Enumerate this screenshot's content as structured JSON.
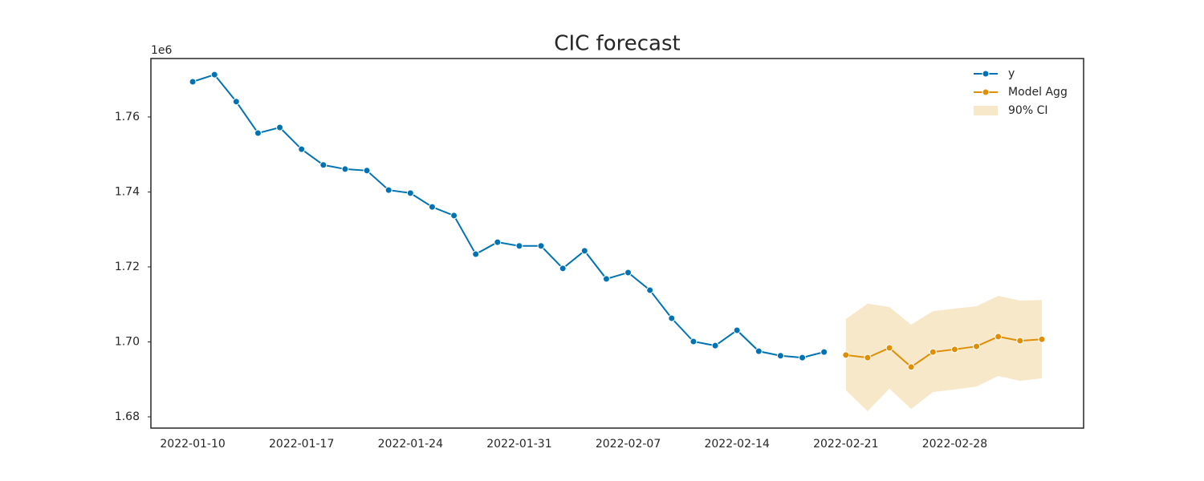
{
  "chart_data": {
    "type": "line",
    "title": "CIC forecast",
    "offset_label": "1e6",
    "categories": [
      "2022-01-10",
      null,
      null,
      null,
      null,
      "2022-01-17",
      null,
      null,
      null,
      null,
      "2022-01-24",
      null,
      null,
      null,
      null,
      "2022-01-31",
      null,
      null,
      null,
      null,
      "2022-02-07",
      null,
      null,
      null,
      null,
      "2022-02-14",
      null,
      null,
      null,
      null,
      "2022-02-21",
      null,
      null,
      null,
      null,
      "2022-02-28",
      null,
      null,
      null,
      null
    ],
    "series": [
      {
        "name": "y",
        "color": "#0173b2",
        "values": [
          1.7694,
          1.7713,
          1.7641,
          1.7557,
          1.7572,
          1.7514,
          1.7472,
          1.7461,
          1.7457,
          1.7405,
          1.7397,
          1.736,
          1.7337,
          1.7234,
          1.7266,
          1.7256,
          1.7256,
          1.7196,
          1.7243,
          1.7168,
          1.7185,
          1.7138,
          1.7063,
          1.7001,
          1.699,
          1.7031,
          1.6975,
          1.6963,
          1.6958,
          1.6973,
          null,
          null,
          null,
          null,
          null,
          null,
          null,
          null,
          null,
          null
        ]
      },
      {
        "name": "Model Agg",
        "color": "#de8f05",
        "values": [
          null,
          null,
          null,
          null,
          null,
          null,
          null,
          null,
          null,
          null,
          null,
          null,
          null,
          null,
          null,
          null,
          null,
          null,
          null,
          null,
          null,
          null,
          null,
          null,
          null,
          null,
          null,
          null,
          null,
          null,
          1.6965,
          1.6958,
          1.6984,
          1.6933,
          1.6973,
          1.698,
          1.6988,
          1.7014,
          1.7003,
          1.7007
        ]
      }
    ],
    "ci": {
      "name": "90% CI",
      "color": "#f5deb3",
      "lower": [
        null,
        null,
        null,
        null,
        null,
        null,
        null,
        null,
        null,
        null,
        null,
        null,
        null,
        null,
        null,
        null,
        null,
        null,
        null,
        null,
        null,
        null,
        null,
        null,
        null,
        null,
        null,
        null,
        null,
        null,
        1.6871,
        1.6815,
        1.6875,
        1.6821,
        1.6866,
        1.6873,
        1.6881,
        1.6909,
        1.6896,
        1.6903
      ],
      "upper": [
        null,
        null,
        null,
        null,
        null,
        null,
        null,
        null,
        null,
        null,
        null,
        null,
        null,
        null,
        null,
        null,
        null,
        null,
        null,
        null,
        null,
        null,
        null,
        null,
        null,
        null,
        null,
        null,
        null,
        null,
        1.7061,
        1.7102,
        1.7093,
        1.7046,
        1.7082,
        1.7089,
        1.7095,
        1.7123,
        1.711,
        1.7112
      ]
    },
    "ylim": [
      1.677,
      1.7756
    ],
    "yticks": [
      1.68,
      {
        "value": 1.7,
        "label": "1.70"
      },
      1.72,
      1.74,
      1.76
    ],
    "legend": "upper right"
  }
}
